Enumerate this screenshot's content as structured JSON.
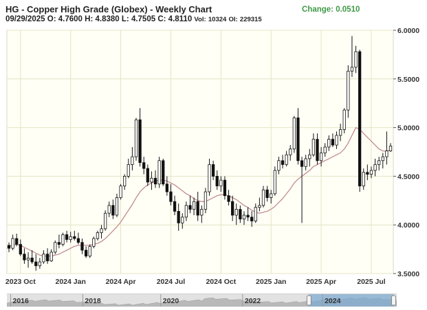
{
  "header": {
    "title": "HG - Copper High Grade (Globex) - Weekly Chart",
    "change": "Change: 0.0510",
    "date": "09/29/2025",
    "open_label": "O:",
    "open": "4.7600",
    "high_label": "H:",
    "high": "4.8380",
    "low_label": "L:",
    "low": "4.7505",
    "close_label": "C:",
    "close": "4.8110",
    "vol_label": "Vol:",
    "vol": "10324",
    "oi_label": "OI:",
    "oi": "229315"
  },
  "colors": {
    "candle": "#111111",
    "ma": "#c08a92",
    "grid": "#e4e4c4",
    "plot_bg": "#fffff6",
    "change": "#3f9a45",
    "nav_fill": "#7aa9d2"
  },
  "navigator": {
    "years": [
      "2016",
      "2018",
      "2020",
      "2022",
      "2024"
    ]
  },
  "chart_data": {
    "type": "candlestick",
    "title": "HG - Copper High Grade (Globex) - Weekly Chart",
    "ylim": [
      3.5,
      6.0
    ],
    "y_ticks": [
      "3.5000",
      "4.0000",
      "4.5000",
      "5.0000",
      "5.5000",
      "6.0000"
    ],
    "x_ticks": [
      "2023 Oct",
      "2024 Jan",
      "2024 Apr",
      "2024 Jul",
      "2024 Oct",
      "2025 Jan",
      "2025 Apr",
      "2025 Jul"
    ],
    "grid": true,
    "series": [
      {
        "fields": [
          "open",
          "high",
          "low",
          "close"
        ],
        "values": [
          [
            3.79,
            3.82,
            3.72,
            3.76
          ],
          [
            3.76,
            3.9,
            3.74,
            3.86
          ],
          [
            3.86,
            3.91,
            3.78,
            3.8
          ],
          [
            3.8,
            3.85,
            3.68,
            3.7
          ],
          [
            3.7,
            3.76,
            3.6,
            3.64
          ],
          [
            3.64,
            3.72,
            3.56,
            3.66
          ],
          [
            3.66,
            3.74,
            3.6,
            3.62
          ],
          [
            3.62,
            3.7,
            3.53,
            3.58
          ],
          [
            3.58,
            3.66,
            3.55,
            3.62
          ],
          [
            3.62,
            3.74,
            3.6,
            3.7
          ],
          [
            3.7,
            3.76,
            3.6,
            3.63
          ],
          [
            3.63,
            3.75,
            3.62,
            3.72
          ],
          [
            3.72,
            3.84,
            3.7,
            3.82
          ],
          [
            3.82,
            3.9,
            3.76,
            3.8
          ],
          [
            3.8,
            3.92,
            3.78,
            3.9
          ],
          [
            3.9,
            3.94,
            3.82,
            3.85
          ],
          [
            3.85,
            3.93,
            3.82,
            3.88
          ],
          [
            3.88,
            3.94,
            3.84,
            3.86
          ],
          [
            3.86,
            3.92,
            3.8,
            3.82
          ],
          [
            3.82,
            3.86,
            3.7,
            3.74
          ],
          [
            3.74,
            3.78,
            3.66,
            3.68
          ],
          [
            3.68,
            3.8,
            3.66,
            3.78
          ],
          [
            3.78,
            3.88,
            3.76,
            3.86
          ],
          [
            3.86,
            3.94,
            3.84,
            3.92
          ],
          [
            3.92,
            4.0,
            3.86,
            3.96
          ],
          [
            3.96,
            4.15,
            3.94,
            4.12
          ],
          [
            4.12,
            4.24,
            4.08,
            4.2
          ],
          [
            4.2,
            4.26,
            4.06,
            4.1
          ],
          [
            4.1,
            4.32,
            4.08,
            4.28
          ],
          [
            4.28,
            4.42,
            4.26,
            4.4
          ],
          [
            4.4,
            4.52,
            4.36,
            4.5
          ],
          [
            4.5,
            4.68,
            4.48,
            4.62
          ],
          [
            4.62,
            4.8,
            4.56,
            4.7
          ],
          [
            4.7,
            5.1,
            4.66,
            5.08
          ],
          [
            5.08,
            5.2,
            4.6,
            4.64
          ],
          [
            4.64,
            4.7,
            4.52,
            4.58
          ],
          [
            4.58,
            4.62,
            4.4,
            4.44
          ],
          [
            4.44,
            4.55,
            4.36,
            4.48
          ],
          [
            4.48,
            4.56,
            4.38,
            4.42
          ],
          [
            4.42,
            4.7,
            4.38,
            4.66
          ],
          [
            4.66,
            4.68,
            4.4,
            4.42
          ],
          [
            4.42,
            4.5,
            4.3,
            4.34
          ],
          [
            4.34,
            4.42,
            4.2,
            4.24
          ],
          [
            4.24,
            4.3,
            4.1,
            4.14
          ],
          [
            4.14,
            4.22,
            3.94,
            4.02
          ],
          [
            4.02,
            4.12,
            3.96,
            4.08
          ],
          [
            4.08,
            4.24,
            4.04,
            4.2
          ],
          [
            4.2,
            4.3,
            4.12,
            4.16
          ],
          [
            4.16,
            4.28,
            4.1,
            4.24
          ],
          [
            4.24,
            4.34,
            4.04,
            4.1
          ],
          [
            4.1,
            4.2,
            4.02,
            4.16
          ],
          [
            4.16,
            4.38,
            4.12,
            4.34
          ],
          [
            4.34,
            4.68,
            4.3,
            4.62
          ],
          [
            4.62,
            4.66,
            4.46,
            4.5
          ],
          [
            4.5,
            4.56,
            4.36,
            4.4
          ],
          [
            4.4,
            4.5,
            4.34,
            4.46
          ],
          [
            4.46,
            4.5,
            4.26,
            4.3
          ],
          [
            4.3,
            4.36,
            4.2,
            4.24
          ],
          [
            4.24,
            4.3,
            4.04,
            4.1
          ],
          [
            4.1,
            4.22,
            4.0,
            4.16
          ],
          [
            4.16,
            4.2,
            4.02,
            4.06
          ],
          [
            4.06,
            4.14,
            4.0,
            4.1
          ],
          [
            4.1,
            4.18,
            4.04,
            4.08
          ],
          [
            4.08,
            4.14,
            3.98,
            4.04
          ],
          [
            4.04,
            4.22,
            4.02,
            4.18
          ],
          [
            4.18,
            4.28,
            4.14,
            4.2
          ],
          [
            4.2,
            4.4,
            4.18,
            4.36
          ],
          [
            4.36,
            4.4,
            4.24,
            4.28
          ],
          [
            4.28,
            4.36,
            4.22,
            4.32
          ],
          [
            4.32,
            4.6,
            4.3,
            4.56
          ],
          [
            4.56,
            4.7,
            4.52,
            4.66
          ],
          [
            4.66,
            4.72,
            4.58,
            4.62
          ],
          [
            4.62,
            4.76,
            4.6,
            4.72
          ],
          [
            4.72,
            4.82,
            4.66,
            4.78
          ],
          [
            4.78,
            5.12,
            4.74,
            5.1
          ],
          [
            5.1,
            5.2,
            4.62,
            4.66
          ],
          [
            4.66,
            4.7,
            4.02,
            4.6
          ],
          [
            4.6,
            4.72,
            4.56,
            4.68
          ],
          [
            4.68,
            4.78,
            4.6,
            4.72
          ],
          [
            4.72,
            4.94,
            4.7,
            4.88
          ],
          [
            4.88,
            4.94,
            4.62,
            4.66
          ],
          [
            4.66,
            4.8,
            4.6,
            4.74
          ],
          [
            4.74,
            4.84,
            4.7,
            4.8
          ],
          [
            4.8,
            4.92,
            4.76,
            4.88
          ],
          [
            4.88,
            4.94,
            4.8,
            4.82
          ],
          [
            4.82,
            4.96,
            4.78,
            4.92
          ],
          [
            4.92,
            5.04,
            4.86,
            4.98
          ],
          [
            4.98,
            5.2,
            4.94,
            5.18
          ],
          [
            5.18,
            5.64,
            5.1,
            5.58
          ],
          [
            5.58,
            5.94,
            5.52,
            5.62
          ],
          [
            5.62,
            5.84,
            5.56,
            5.78
          ],
          [
            5.78,
            5.8,
            4.34,
            4.4
          ],
          [
            4.4,
            4.58,
            4.36,
            4.54
          ],
          [
            4.54,
            4.62,
            4.46,
            4.52
          ],
          [
            4.52,
            4.6,
            4.48,
            4.56
          ],
          [
            4.56,
            4.68,
            4.5,
            4.62
          ],
          [
            4.62,
            4.7,
            4.56,
            4.66
          ],
          [
            4.66,
            4.74,
            4.58,
            4.7
          ],
          [
            4.7,
            4.96,
            4.62,
            4.76
          ],
          [
            4.76,
            4.84,
            4.75,
            4.81
          ]
        ]
      },
      {
        "name": "",
        "style": "line",
        "values": [
          3.78,
          3.79,
          3.8,
          3.79,
          3.77,
          3.75,
          3.73,
          3.71,
          3.69,
          3.68,
          3.68,
          3.68,
          3.69,
          3.7,
          3.72,
          3.74,
          3.76,
          3.78,
          3.79,
          3.79,
          3.79,
          3.79,
          3.8,
          3.81,
          3.83,
          3.86,
          3.9,
          3.94,
          3.98,
          4.03,
          4.09,
          4.15,
          4.21,
          4.28,
          4.34,
          4.38,
          4.41,
          4.43,
          4.45,
          4.46,
          4.46,
          4.45,
          4.43,
          4.41,
          4.38,
          4.35,
          4.32,
          4.3,
          4.27,
          4.25,
          4.24,
          4.24,
          4.26,
          4.28,
          4.3,
          4.31,
          4.31,
          4.3,
          4.28,
          4.26,
          4.23,
          4.2,
          4.18,
          4.15,
          4.13,
          4.12,
          4.13,
          4.14,
          4.16,
          4.19,
          4.23,
          4.27,
          4.32,
          4.37,
          4.43,
          4.47,
          4.5,
          4.53,
          4.56,
          4.6,
          4.62,
          4.64,
          4.66,
          4.68,
          4.7,
          4.72,
          4.74,
          4.78,
          4.84,
          4.92,
          5.0,
          4.98,
          4.94,
          4.9,
          4.86,
          4.82,
          4.78,
          4.76,
          4.76,
          4.77
        ]
      }
    ]
  }
}
